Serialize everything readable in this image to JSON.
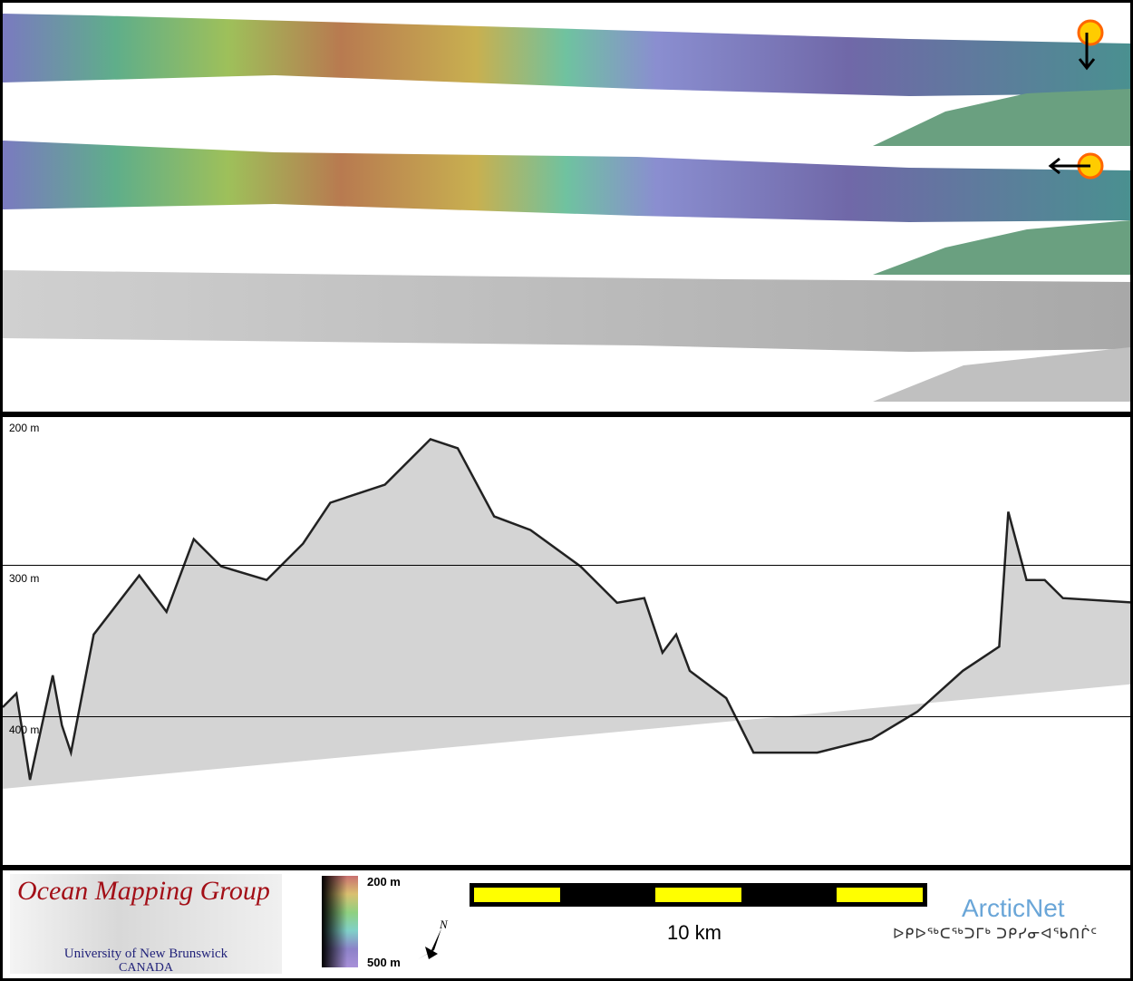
{
  "figure": {
    "map_panels": [
      {
        "name": "shaded-bathymetry-sun-north"
      },
      {
        "name": "shaded-bathymetry-sun-east"
      },
      {
        "name": "backscatter-mosaic"
      }
    ],
    "echogram": {
      "depth_ticks": [
        "200 m",
        "300 m",
        "400 m"
      ],
      "depth_tick_values": [
        200,
        300,
        400
      ],
      "profile": {
        "distance_km": [
          0,
          0.3,
          0.6,
          1.1,
          1.3,
          1.5,
          2.0,
          3.0,
          3.6,
          4.2,
          4.8,
          5.8,
          6.6,
          7.2,
          8.4,
          9.4,
          10.0,
          10.8,
          11.6,
          12.7,
          13.5,
          14.1,
          14.5,
          14.8,
          15.1,
          15.9,
          16.5,
          17.9,
          19.1,
          20.1,
          21.1,
          21.9,
          22.1,
          22.5,
          22.9,
          23.3,
          24.9
        ],
        "depth_m": [
          394,
          385,
          442,
          373,
          406,
          424,
          346,
          307,
          331,
          283,
          301,
          310,
          286,
          259,
          247,
          217,
          223,
          268,
          277,
          301,
          325,
          322,
          358,
          346,
          370,
          388,
          424,
          424,
          415,
          397,
          370,
          354,
          265,
          310,
          310,
          322,
          325
        ]
      }
    },
    "footer": {
      "logo_title": "Ocean Mapping Group",
      "logo_sub1": "University of New Brunswick",
      "logo_sub2": "CANADA",
      "colorbar_top": "200 m",
      "colorbar_bottom": "500 m",
      "north_label": "N",
      "scale_label": "10 km",
      "partner": "ArcticNet",
      "partner_syllabics": "ᐅᑭᐅᖅᑕᖅᑐᒥᒃ ᑐᑭᓯᓂᐊᖃᑎᒌᑦ"
    },
    "colors": {
      "scale_bar": "#ffff00",
      "logo_title": "#a30f17",
      "partner": "#6aa6d8"
    }
  }
}
